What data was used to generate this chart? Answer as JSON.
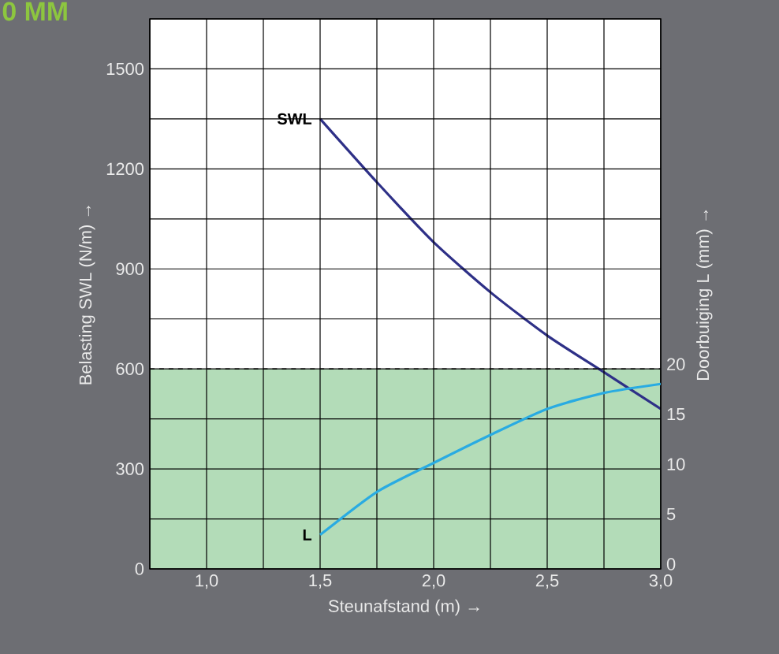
{
  "chart_data": {
    "type": "line",
    "title": "0 MM",
    "xlabel": "Steunafstand (m) →",
    "ylabel": "Belasting SWL (N/m) →",
    "y2label": "Doorbuiging L (mm) →",
    "x": [
      1.5,
      1.75,
      2.0,
      2.25,
      2.5,
      2.75,
      3.0
    ],
    "series": [
      {
        "name": "SWL",
        "color": "#2e3087",
        "values": [
          1350,
          1160,
          980,
          830,
          700,
          590,
          480
        ]
      },
      {
        "name": "L",
        "color": "#29abe2",
        "axis": "y2",
        "values": [
          3.4,
          7.7,
          10.6,
          13.4,
          16.0,
          17.6,
          18.5
        ]
      }
    ],
    "xlim": [
      0.75,
      3.0
    ],
    "xticks": [
      {
        "value": 0.75,
        "label": null
      },
      {
        "value": 1.0,
        "label": "1,0"
      },
      {
        "value": 1.25,
        "label": null
      },
      {
        "value": 1.5,
        "label": "1,5"
      },
      {
        "value": 1.75,
        "label": null
      },
      {
        "value": 2.0,
        "label": "2,0"
      },
      {
        "value": 2.25,
        "label": null
      },
      {
        "value": 2.5,
        "label": "2,5"
      },
      {
        "value": 2.75,
        "label": null
      },
      {
        "value": 3.0,
        "label": "3,0"
      }
    ],
    "ylim": [
      0,
      1650
    ],
    "yticks": [
      0,
      {
        "value": 150,
        "label": null
      },
      300,
      {
        "value": 450,
        "label": null
      },
      600,
      {
        "value": 750,
        "label": null
      },
      900,
      {
        "value": 1050,
        "label": null
      },
      1200,
      {
        "value": 1350,
        "label": null
      },
      1500,
      {
        "value": 1650,
        "label": null
      }
    ],
    "y2lim": [
      0,
      55
    ],
    "y2ticks": [
      0,
      5,
      10,
      15,
      20
    ],
    "bands": [
      {
        "axis": "y",
        "from": 0,
        "to": 600,
        "color": "#b3dcb8"
      }
    ],
    "ref_lines": [
      {
        "axis": "y",
        "value": 600,
        "line_style": "dashed"
      }
    ],
    "grid": true
  }
}
